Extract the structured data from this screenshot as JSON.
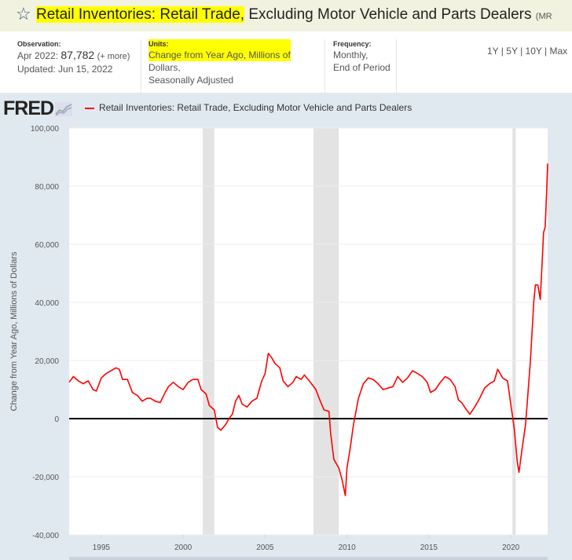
{
  "header": {
    "title_highlighted": "Retail Inventories: Retail Trade,",
    "title_rest": " Excluding Motor Vehicle and Parts Dealers",
    "series_id_fragment": "(MR"
  },
  "meta": {
    "observation_label": "Observation:",
    "observation_date": "Apr 2022:",
    "observation_value": "87,782",
    "more": "(+ more)",
    "updated": "Updated: Jun 15, 2022",
    "units_label": "Units:",
    "units_line1": "Change from Year Ago, Millions of",
    "units_line2": "Dollars,",
    "units_line3": "Seasonally Adjusted",
    "frequency_label": "Frequency:",
    "frequency_line1": "Monthly,",
    "frequency_line2": "End of Period",
    "ranges": [
      "1Y",
      "5Y",
      "10Y",
      "Max"
    ]
  },
  "logo": "FRED",
  "colors": {
    "series": "#ff0000",
    "recession": "#e3e3e3",
    "panel": "#e1e9f0"
  },
  "chart_data": {
    "type": "line",
    "title": "Retail Inventories: Retail Trade, Excluding Motor Vehicle and Parts Dealers",
    "ylabel": "Change from Year Ago, Millions of Dollars",
    "xlabel": "",
    "xlim": [
      1993.04,
      2022.25
    ],
    "ylim": [
      -40000,
      100000
    ],
    "yticks": [
      -40000,
      -20000,
      0,
      20000,
      40000,
      60000,
      80000,
      100000
    ],
    "ytick_labels": [
      "-40,000",
      "-20,000",
      "0",
      "20,000",
      "40,000",
      "60,000",
      "80,000",
      "100,000"
    ],
    "xticks": [
      1995,
      2000,
      2005,
      2010,
      2015,
      2020
    ],
    "xtick_labels": [
      "1995",
      "2000",
      "2005",
      "2010",
      "2015",
      "2020"
    ],
    "grid": true,
    "legend": "top-left",
    "recessions": [
      [
        2001.2,
        2001.9
      ],
      [
        2007.95,
        2009.5
      ],
      [
        2020.1,
        2020.3
      ]
    ],
    "series": [
      {
        "name": "Retail Inventories: Retail Trade, Excluding Motor Vehicle and Parts Dealers",
        "points": [
          [
            1993.04,
            12500
          ],
          [
            1993.3,
            14500
          ],
          [
            1993.6,
            13000
          ],
          [
            1993.9,
            12000
          ],
          [
            1994.2,
            13000
          ],
          [
            1994.5,
            10000
          ],
          [
            1994.7,
            9500
          ],
          [
            1995.0,
            14000
          ],
          [
            1995.3,
            15500
          ],
          [
            1995.6,
            16500
          ],
          [
            1995.9,
            17500
          ],
          [
            1996.1,
            17000
          ],
          [
            1996.3,
            13500
          ],
          [
            1996.6,
            13500
          ],
          [
            1996.9,
            9000
          ],
          [
            1997.2,
            8000
          ],
          [
            1997.5,
            6000
          ],
          [
            1997.8,
            7000
          ],
          [
            1998.0,
            7000
          ],
          [
            1998.3,
            6000
          ],
          [
            1998.6,
            5500
          ],
          [
            1998.9,
            9000
          ],
          [
            1999.1,
            11000
          ],
          [
            1999.4,
            12500
          ],
          [
            1999.7,
            11000
          ],
          [
            2000.0,
            10000
          ],
          [
            2000.3,
            12500
          ],
          [
            2000.6,
            13500
          ],
          [
            2000.9,
            13500
          ],
          [
            2001.1,
            10000
          ],
          [
            2001.4,
            8500
          ],
          [
            2001.6,
            4500
          ],
          [
            2001.9,
            3000
          ],
          [
            2002.1,
            -3000
          ],
          [
            2002.3,
            -4000
          ],
          [
            2002.6,
            -2000
          ],
          [
            2002.8,
            0
          ],
          [
            2003.0,
            1500
          ],
          [
            2003.2,
            6000
          ],
          [
            2003.4,
            8000
          ],
          [
            2003.6,
            5000
          ],
          [
            2003.9,
            4000
          ],
          [
            2004.2,
            6000
          ],
          [
            2004.5,
            7000
          ],
          [
            2004.8,
            13000
          ],
          [
            2005.0,
            15500
          ],
          [
            2005.2,
            22500
          ],
          [
            2005.4,
            21000
          ],
          [
            2005.6,
            19000
          ],
          [
            2005.9,
            17500
          ],
          [
            2006.1,
            13000
          ],
          [
            2006.4,
            11000
          ],
          [
            2006.7,
            12500
          ],
          [
            2006.9,
            14500
          ],
          [
            2007.2,
            13500
          ],
          [
            2007.4,
            15000
          ],
          [
            2007.7,
            13000
          ],
          [
            2007.9,
            11500
          ],
          [
            2008.1,
            10000
          ],
          [
            2008.3,
            7000
          ],
          [
            2008.6,
            3000
          ],
          [
            2008.9,
            2500
          ],
          [
            2009.0,
            -5000
          ],
          [
            2009.2,
            -14000
          ],
          [
            2009.5,
            -17000
          ],
          [
            2009.7,
            -21000
          ],
          [
            2009.9,
            -26500
          ],
          [
            2010.0,
            -17000
          ],
          [
            2010.2,
            -10000
          ],
          [
            2010.4,
            -2000
          ],
          [
            2010.7,
            7000
          ],
          [
            2011.0,
            12000
          ],
          [
            2011.3,
            14000
          ],
          [
            2011.6,
            13500
          ],
          [
            2011.9,
            12000
          ],
          [
            2012.2,
            10000
          ],
          [
            2012.5,
            10500
          ],
          [
            2012.8,
            11000
          ],
          [
            2013.1,
            14500
          ],
          [
            2013.4,
            12500
          ],
          [
            2013.7,
            14000
          ],
          [
            2014.0,
            16500
          ],
          [
            2014.3,
            15500
          ],
          [
            2014.6,
            14500
          ],
          [
            2014.9,
            12500
          ],
          [
            2015.1,
            9000
          ],
          [
            2015.4,
            10000
          ],
          [
            2015.7,
            12500
          ],
          [
            2016.0,
            14500
          ],
          [
            2016.3,
            13500
          ],
          [
            2016.6,
            11000
          ],
          [
            2016.8,
            6500
          ],
          [
            2017.0,
            5500
          ],
          [
            2017.3,
            3000
          ],
          [
            2017.5,
            1500
          ],
          [
            2017.8,
            4000
          ],
          [
            2018.1,
            7000
          ],
          [
            2018.4,
            10500
          ],
          [
            2018.7,
            12000
          ],
          [
            2019.0,
            13000
          ],
          [
            2019.2,
            17000
          ],
          [
            2019.5,
            14000
          ],
          [
            2019.8,
            13000
          ],
          [
            2020.0,
            5000
          ],
          [
            2020.2,
            -3000
          ],
          [
            2020.4,
            -15000
          ],
          [
            2020.5,
            -18500
          ],
          [
            2020.7,
            -10000
          ],
          [
            2020.9,
            -2000
          ],
          [
            2021.0,
            5000
          ],
          [
            2021.2,
            20000
          ],
          [
            2021.4,
            40000
          ],
          [
            2021.5,
            46000
          ],
          [
            2021.65,
            46000
          ],
          [
            2021.8,
            41000
          ],
          [
            2021.9,
            52000
          ],
          [
            2022.0,
            64000
          ],
          [
            2022.1,
            66000
          ],
          [
            2022.2,
            80000
          ],
          [
            2022.25,
            87782
          ]
        ]
      }
    ]
  }
}
